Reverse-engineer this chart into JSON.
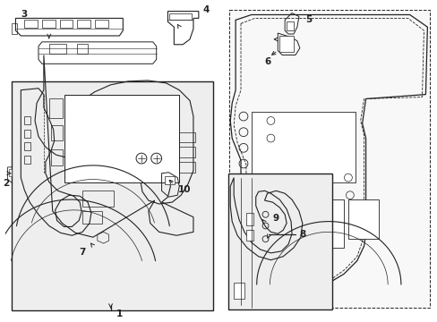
{
  "background_color": "#ffffff",
  "figure_size": [
    4.89,
    3.6
  ],
  "dpi": 100,
  "line_color": "#2a2a2a",
  "lw": 0.8,
  "tlw": 0.5
}
